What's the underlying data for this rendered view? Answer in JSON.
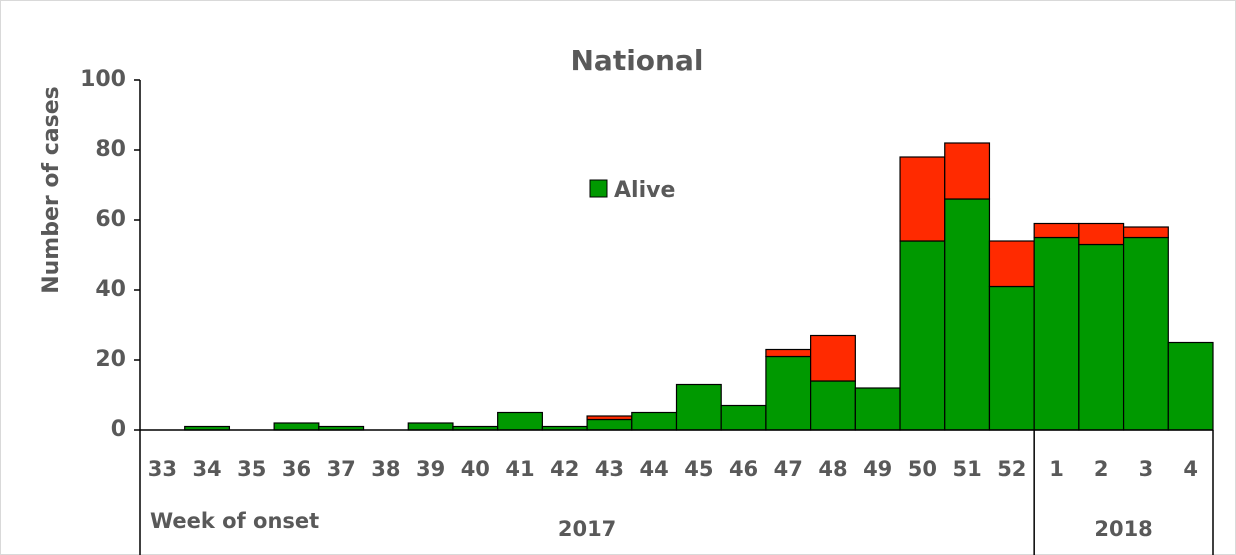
{
  "chart_data": {
    "type": "stacked_bar",
    "title": "National",
    "y_label": "Number of cases",
    "x_label": "Week of onset",
    "categories": [
      "33",
      "34",
      "35",
      "36",
      "37",
      "38",
      "39",
      "40",
      "41",
      "42",
      "43",
      "44",
      "45",
      "46",
      "47",
      "48",
      "49",
      "50",
      "51",
      "52",
      "1",
      "2",
      "3",
      "4"
    ],
    "groups": [
      {
        "label": "2017",
        "span": [
          0,
          19
        ]
      },
      {
        "label": "2018",
        "span": [
          20,
          23
        ]
      }
    ],
    "series": [
      {
        "name": "Alive",
        "color": "#009900",
        "values": [
          0,
          1,
          0,
          2,
          1,
          0,
          2,
          1,
          5,
          1,
          3,
          5,
          13,
          7,
          21,
          14,
          12,
          54,
          66,
          41,
          55,
          53,
          55,
          25
        ]
      },
      {
        "color": "#ff2a00",
        "values": [
          0,
          0,
          0,
          0,
          0,
          0,
          0,
          0,
          0,
          0,
          1,
          0,
          0,
          0,
          2,
          13,
          0,
          24,
          16,
          13,
          4,
          6,
          3,
          0
        ]
      }
    ],
    "ylim": [
      0,
      100
    ],
    "yticks": [
      0,
      20,
      40,
      60,
      80,
      100
    ]
  }
}
